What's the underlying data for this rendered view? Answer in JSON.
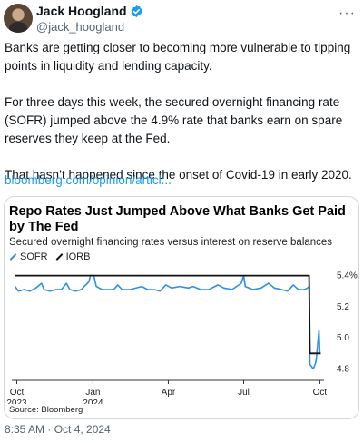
{
  "author": {
    "display_name": "Jack Hoogland",
    "handle": "@jack_hoogland",
    "verified_icon": "verified-badge-icon",
    "verified_color": "#1d9bf0"
  },
  "menu": {
    "more_label": "···"
  },
  "tweet": {
    "paragraphs": [
      "Banks are getting closer to becoming more vulnerable to tipping points in liquidity and lending capacity.",
      "For three days this week, the secured overnight financing rate (SOFR) jumped above the 4.9% rate that banks earn on spare reserves they keep at the Fed.",
      "That  hasn’t happened since the onset of Covid-19 in early 2020."
    ],
    "link": "bloomberg.com/opinion/articl...",
    "timestamp": "8:35 AM · Oct 4, 2024"
  },
  "card": {
    "source": "Source: Bloomberg"
  },
  "chart_data": {
    "type": "line",
    "title": "Repo Rates Just Jumped Above What Banks Get Paid by The Fed",
    "subtitle": "Secured overnight financing rates versus interest on reserve balances",
    "x_tick_labels": [
      {
        "date": "2023-10-01",
        "line1": "Oct",
        "line2": "2023"
      },
      {
        "date": "2024-01-01",
        "line1": "Jan",
        "line2": "2024"
      },
      {
        "date": "2024-04-01",
        "line1": "Apr",
        "line2": ""
      },
      {
        "date": "2024-07-01",
        "line1": "Jul",
        "line2": ""
      },
      {
        "date": "2024-10-01",
        "line1": "Oct",
        "line2": ""
      }
    ],
    "y_ticks": [
      5.4,
      5.2,
      5.0,
      4.8
    ],
    "y_tick_labels": [
      "5.4%",
      "5.2",
      "5.0",
      "4.8"
    ],
    "ylim": [
      4.75,
      5.45
    ],
    "xlim": [
      "2023-09-25",
      "2024-10-06"
    ],
    "legend_position": "top-left",
    "series": [
      {
        "name": "SOFR",
        "color": "#2f8fe6",
        "points": [
          [
            "2023-09-29",
            5.33
          ],
          [
            "2023-10-03",
            5.3
          ],
          [
            "2023-10-10",
            5.31
          ],
          [
            "2023-10-17",
            5.3
          ],
          [
            "2023-10-24",
            5.32
          ],
          [
            "2023-10-31",
            5.35
          ],
          [
            "2023-11-03",
            5.31
          ],
          [
            "2023-11-10",
            5.3
          ],
          [
            "2023-11-17",
            5.31
          ],
          [
            "2023-11-24",
            5.31
          ],
          [
            "2023-11-30",
            5.35
          ],
          [
            "2023-12-04",
            5.31
          ],
          [
            "2023-12-11",
            5.3
          ],
          [
            "2023-12-18",
            5.31
          ],
          [
            "2023-12-27",
            5.36
          ],
          [
            "2023-12-29",
            5.4
          ],
          [
            "2024-01-02",
            5.4
          ],
          [
            "2024-01-05",
            5.33
          ],
          [
            "2024-01-12",
            5.31
          ],
          [
            "2024-01-19",
            5.31
          ],
          [
            "2024-01-26",
            5.31
          ],
          [
            "2024-01-31",
            5.34
          ],
          [
            "2024-02-05",
            5.31
          ],
          [
            "2024-02-15",
            5.31
          ],
          [
            "2024-02-29",
            5.33
          ],
          [
            "2024-03-07",
            5.31
          ],
          [
            "2024-03-15",
            5.31
          ],
          [
            "2024-03-22",
            5.3
          ],
          [
            "2024-03-29",
            5.34
          ],
          [
            "2024-04-05",
            5.32
          ],
          [
            "2024-04-15",
            5.33
          ],
          [
            "2024-04-25",
            5.32
          ],
          [
            "2024-05-01",
            5.33
          ],
          [
            "2024-05-10",
            5.31
          ],
          [
            "2024-05-20",
            5.31
          ],
          [
            "2024-05-31",
            5.34
          ],
          [
            "2024-06-07",
            5.32
          ],
          [
            "2024-06-17",
            5.31
          ],
          [
            "2024-06-28",
            5.35
          ],
          [
            "2024-07-01",
            5.4
          ],
          [
            "2024-07-03",
            5.33
          ],
          [
            "2024-07-12",
            5.31
          ],
          [
            "2024-07-22",
            5.32
          ],
          [
            "2024-07-31",
            5.35
          ],
          [
            "2024-08-07",
            5.32
          ],
          [
            "2024-08-16",
            5.31
          ],
          [
            "2024-08-23",
            5.3
          ],
          [
            "2024-08-30",
            5.34
          ],
          [
            "2024-09-05",
            5.31
          ],
          [
            "2024-09-12",
            5.31
          ],
          [
            "2024-09-16",
            5.32
          ],
          [
            "2024-09-18",
            5.33
          ],
          [
            "2024-09-19",
            4.83
          ],
          [
            "2024-09-23",
            4.8
          ],
          [
            "2024-09-26",
            4.84
          ],
          [
            "2024-09-27",
            4.88
          ],
          [
            "2024-09-30",
            5.05
          ],
          [
            "2024-10-01",
            4.9
          ]
        ]
      },
      {
        "name": "IORB",
        "color": "#111111",
        "points": [
          [
            "2023-09-29",
            5.4
          ],
          [
            "2024-09-18",
            5.4
          ],
          [
            "2024-09-19",
            4.9
          ],
          [
            "2024-10-02",
            4.9
          ]
        ]
      }
    ]
  }
}
